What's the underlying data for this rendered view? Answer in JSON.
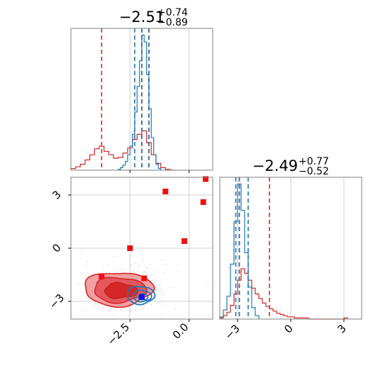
{
  "chart_data": [
    {
      "type": "histogram",
      "panel": "top-left",
      "parameter_index": 0,
      "title": {
        "value": "−2.51",
        "upper": "+0.74",
        "lower": "−0.89"
      },
      "xlim": [
        -5.0,
        1.0
      ],
      "grid": true,
      "colors": {
        "red": "#d62728",
        "blue": "#1f77b4"
      },
      "quantile_lines": {
        "red": [
          -3.7,
          -2.0,
          -1.7
        ],
        "blue": [
          -2.3,
          -2.0,
          -1.7
        ]
      },
      "series": [
        {
          "name": "",
          "color": "#d62728",
          "bin_edges": [
            -5.0,
            -4.8,
            -4.6,
            -4.4,
            -4.2,
            -4.0,
            -3.8,
            -3.6,
            -3.4,
            -3.2,
            -3.0,
            -2.8,
            -2.6,
            -2.4,
            -2.2,
            -2.0,
            -1.8,
            -1.6,
            -1.4,
            -1.2,
            -1.0,
            -0.8,
            -0.6
          ],
          "counts": [
            2,
            4,
            7,
            12,
            18,
            25,
            28,
            22,
            18,
            14,
            15,
            20,
            26,
            36,
            42,
            46,
            32,
            18,
            8,
            3,
            1,
            0
          ]
        },
        {
          "name": "",
          "color": "#1f77b4",
          "bin_edges": [
            -3.0,
            -2.9,
            -2.8,
            -2.7,
            -2.6,
            -2.5,
            -2.4,
            -2.3,
            -2.2,
            -2.1,
            -2.0,
            -1.9,
            -1.8,
            -1.7,
            -1.6,
            -1.5,
            -1.4,
            -1.3,
            -1.2
          ],
          "counts": [
            1,
            3,
            6,
            10,
            18,
            28,
            42,
            68,
            98,
            128,
            158,
            150,
            112,
            72,
            38,
            18,
            7,
            2
          ]
        }
      ]
    },
    {
      "type": "scatter",
      "panel": "bottom-left",
      "xlim": [
        -5.0,
        1.0
      ],
      "ylim": [
        -4.0,
        4.0
      ],
      "x_ticks": [
        -2.5,
        0.0
      ],
      "x_tick_labels": [
        "−2.5",
        "0.0"
      ],
      "y_ticks": [
        3,
        0,
        -3
      ],
      "y_tick_labels": [
        "3",
        "0",
        "−3"
      ],
      "grid": true,
      "contours": {
        "red": {
          "center": [
            -3.0,
            -2.3
          ]
        },
        "blue": {
          "center": [
            -2.0,
            -2.7
          ]
        }
      },
      "series": [
        {
          "name": "",
          "color": "#ee1111",
          "marker": "square",
          "points": [
            [
              -1.0,
              3.2
            ],
            [
              -2.5,
              0.0
            ],
            [
              0.7,
              3.9
            ],
            [
              0.6,
              2.6
            ],
            [
              -0.2,
              0.4
            ],
            [
              -3.7,
              -1.6
            ],
            [
              -1.9,
              -1.7
            ]
          ]
        },
        {
          "name": "",
          "color": "#1111ee",
          "marker": "square",
          "points": [
            [
              -2.0,
              -2.75
            ]
          ]
        }
      ]
    },
    {
      "type": "histogram",
      "panel": "bottom-right",
      "parameter_index": 1,
      "title": {
        "value": "−2.49",
        "upper": "+0.77",
        "lower": "−0.52"
      },
      "xlim": [
        -4.0,
        4.0
      ],
      "x_ticks": [
        -3,
        0,
        3
      ],
      "x_tick_labels": [
        "−3",
        "0",
        "3"
      ],
      "grid": true,
      "quantile_lines": {
        "red": [
          -2.9,
          -1.2
        ],
        "blue": [
          -3.1,
          -2.9,
          -2.4
        ]
      },
      "series": [
        {
          "name": "",
          "color": "#d62728",
          "bin_edges": [
            -4.0,
            -3.8,
            -3.6,
            -3.4,
            -3.2,
            -3.0,
            -2.8,
            -2.6,
            -2.4,
            -2.2,
            -2.0,
            -1.8,
            -1.6,
            -1.4,
            -1.2,
            -1.0,
            -0.8,
            -0.6,
            -0.4,
            -0.2,
            0.0,
            0.2,
            0.4,
            0.6,
            0.8,
            1.0,
            3.0,
            3.2
          ],
          "counts": [
            1,
            3,
            6,
            12,
            22,
            34,
            44,
            40,
            34,
            27,
            22,
            18,
            14,
            11,
            9,
            7,
            5,
            4,
            3,
            2,
            2,
            1,
            1,
            1,
            1,
            0,
            1
          ]
        },
        {
          "name": "",
          "color": "#1f77b4",
          "bin_edges": [
            -4.0,
            -3.8,
            -3.6,
            -3.4,
            -3.2,
            -3.0,
            -2.8,
            -2.6,
            -2.4,
            -2.2,
            -2.0,
            -1.8
          ],
          "counts": [
            2,
            8,
            20,
            48,
            85,
            118,
            95,
            58,
            28,
            10,
            3
          ]
        }
      ]
    }
  ]
}
